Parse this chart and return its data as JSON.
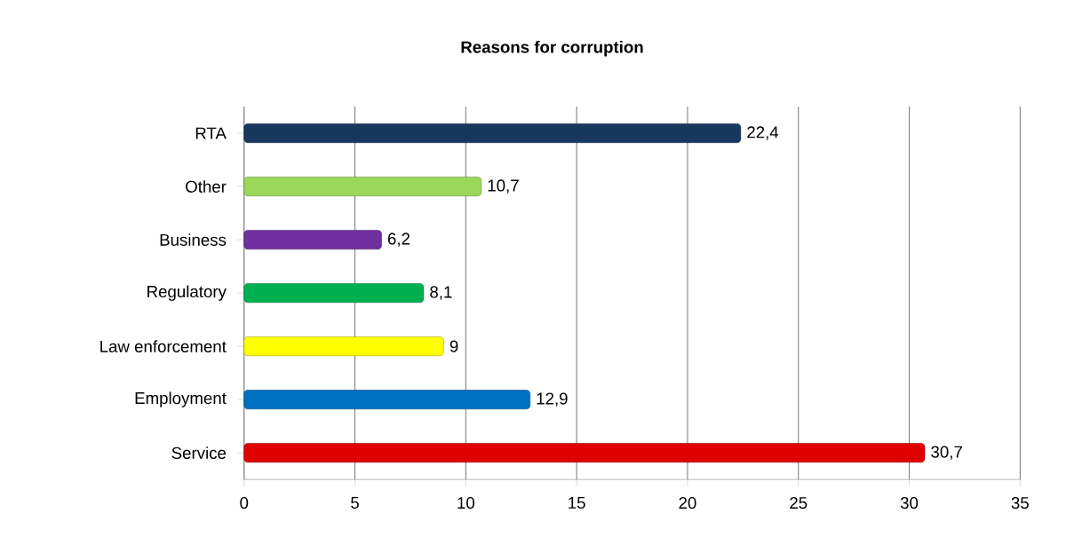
{
  "chart_data": {
    "type": "bar",
    "orientation": "horizontal",
    "title": "Reasons for corruption",
    "categories": [
      "RTA",
      "Other",
      "Business",
      "Regulatory",
      "Law enforcement",
      "Employment",
      "Service"
    ],
    "values": [
      22.4,
      10.7,
      6.2,
      8.1,
      9,
      12.9,
      30.7
    ],
    "value_labels": [
      "22,4",
      "10,7",
      "6,2",
      "8,1",
      "9",
      "12,9",
      "30,7"
    ],
    "colors": [
      "#17375e",
      "#9bd75a",
      "#7030a0",
      "#00b050",
      "#ffff00",
      "#0070c0",
      "#e00000"
    ],
    "xlim": [
      0,
      35
    ],
    "xticks": [
      0,
      5,
      10,
      15,
      20,
      25,
      30,
      35
    ],
    "grid": "x"
  }
}
